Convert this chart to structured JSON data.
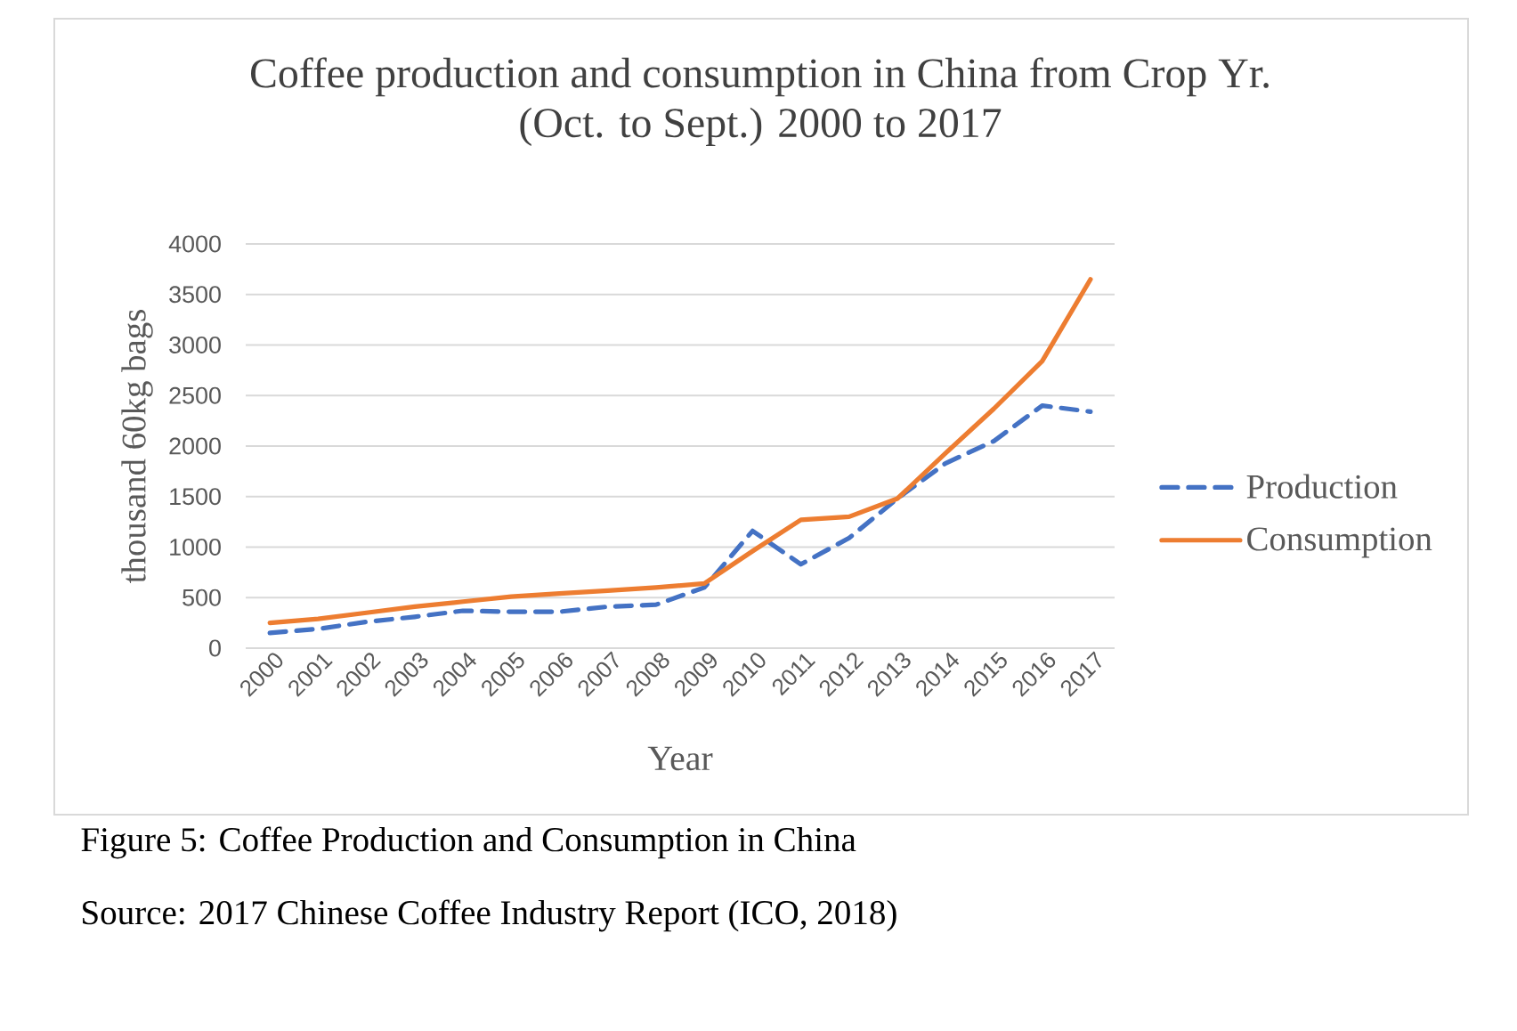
{
  "chart_data": {
    "type": "line",
    "title": "Coffee production and consumption in China from Crop Yr. (Oct. to Sept.) 2000 to 2017",
    "xlabel": "Year",
    "ylabel": "thousand 60kg bags",
    "categories": [
      "2000",
      "2001",
      "2002",
      "2003",
      "2004",
      "2005",
      "2006",
      "2007",
      "2008",
      "2009",
      "2010",
      "2011",
      "2012",
      "2013",
      "2014",
      "2015",
      "2016",
      "2017"
    ],
    "series": [
      {
        "name": "Production",
        "color": "#4472c4",
        "line_style": "dashed",
        "values": [
          150,
          190,
          260,
          310,
          370,
          360,
          360,
          410,
          430,
          600,
          1160,
          830,
          1090,
          1480,
          1830,
          2050,
          2400,
          2340
        ]
      },
      {
        "name": "Consumption",
        "color": "#ed7d31",
        "line_style": "solid",
        "values": [
          250,
          290,
          350,
          410,
          460,
          510,
          540,
          570,
          600,
          640,
          960,
          1270,
          1300,
          1480,
          1930,
          2370,
          2840,
          3650
        ]
      }
    ],
    "ylim": [
      0,
      4000
    ],
    "yticks": [
      0,
      500,
      1000,
      1500,
      2000,
      2500,
      3000,
      3500,
      4000
    ],
    "grid": "y",
    "legend": "right",
    "annotations": [
      "Figure 5: Coffee Production and Consumption in China",
      "Source: 2017 Chinese Coffee Industry Report (ICO, 2018)"
    ]
  }
}
